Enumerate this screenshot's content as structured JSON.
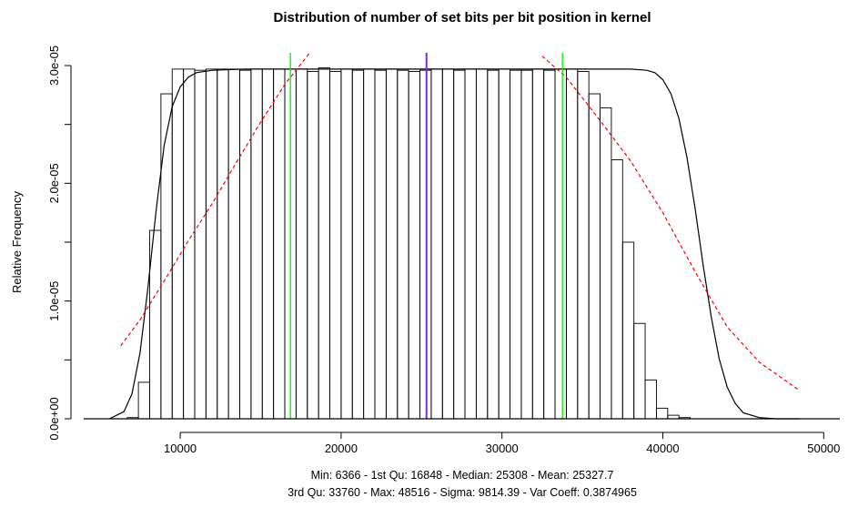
{
  "chart_data": {
    "type": "histogram",
    "title": "Distribution of number of set bits per bit position in kernel",
    "ylabel": "Relative Frequency",
    "xlim": [
      4000,
      51000
    ],
    "ylim": [
      0,
      3e-05
    ],
    "x_ticks": [
      10000,
      20000,
      30000,
      40000,
      50000
    ],
    "x_tick_labels": [
      "10000",
      "20000",
      "30000",
      "40000",
      "50000"
    ],
    "y_ticks": [
      0,
      1e-05,
      2e-05,
      3e-05
    ],
    "y_tick_labels": [
      "0.0e+00",
      "1.0e-05",
      "2.0e-05",
      "3.0e-05"
    ],
    "bins": {
      "start": 6000,
      "width": 700,
      "values": [
        0.0,
        1e-07,
        3.1e-06,
        1.6e-05,
        2.76e-05,
        2.97e-05,
        2.97e-05,
        2.96e-05,
        2.97e-05,
        2.97e-05,
        2.97e-05,
        2.96e-05,
        2.97e-05,
        2.97e-05,
        2.97e-05,
        2.97e-05,
        2.97e-05,
        2.95e-05,
        2.98e-05,
        2.95e-05,
        2.97e-05,
        2.96e-05,
        2.97e-05,
        2.96e-05,
        2.97e-05,
        2.96e-05,
        2.95e-05,
        2.96e-05,
        2.97e-05,
        2.97e-05,
        2.96e-05,
        2.97e-05,
        2.97e-05,
        2.96e-05,
        2.97e-05,
        2.96e-05,
        2.96e-05,
        2.97e-05,
        2.96e-05,
        2.97e-05,
        2.97e-05,
        2.95e-05,
        2.76e-05,
        2.64e-05,
        2.2e-05,
        1.5e-05,
        8.1e-06,
        3.3e-06,
        9e-07,
        3e-07,
        1e-07,
        0.0
      ]
    },
    "density_curve": {
      "x": [
        5600,
        6500,
        7000,
        7500,
        8000,
        8500,
        9000,
        9500,
        10000,
        10500,
        11000,
        12000,
        14000,
        20000,
        30000,
        38000,
        39000,
        39500,
        40000,
        40500,
        41000,
        41500,
        42000,
        42500,
        43000,
        43500,
        44000,
        44500,
        45000,
        46000,
        47000,
        48500
      ],
      "y": [
        0,
        6e-07,
        2.1e-06,
        5.6e-06,
        1.12e-05,
        1.77e-05,
        2.32e-05,
        2.65e-05,
        2.82e-05,
        2.9e-05,
        2.94e-05,
        2.96e-05,
        2.97e-05,
        2.97e-05,
        2.97e-05,
        2.97e-05,
        2.96e-05,
        2.94e-05,
        2.88e-05,
        2.76e-05,
        2.55e-05,
        2.22e-05,
        1.79e-05,
        1.31e-05,
        8.7e-06,
        5.1e-06,
        2.7e-06,
        1.3e-06,
        5e-07,
        1e-07,
        0,
        0
      ]
    },
    "normal_curves": [
      {
        "color": "#ff0000",
        "x": [
          6300,
          7500,
          9000,
          10500,
          12000,
          13500,
          15000,
          16500,
          18000
        ],
        "y": [
          6.2e-06,
          8.4e-06,
          1.17e-05,
          1.51e-05,
          1.83e-05,
          2.18e-05,
          2.52e-05,
          2.84e-05,
          3.1e-05
        ]
      },
      {
        "color": "#ff0000",
        "x": [
          32500,
          34000,
          36000,
          38000,
          40000,
          42000,
          44000,
          46000,
          48500
        ],
        "y": [
          3.08e-05,
          2.9e-05,
          2.55e-05,
          2.19e-05,
          1.75e-05,
          1.25e-05,
          7.8e-06,
          4.8e-06,
          2.4e-06
        ]
      }
    ],
    "vertical_lines": [
      {
        "x": 16848,
        "color": "#00ee00"
      },
      {
        "x": 25308,
        "color": "#7b2fd0"
      },
      {
        "x": 33760,
        "color": "#00ee00"
      }
    ],
    "stats_text": [
      "Min: 6366 - 1st Qu: 16848 - Median: 25308 - Mean: 25327.7",
      "3rd Qu: 33760 - Max: 48516 - Sigma: 9814.39 - Var Coeff: 0.3874965"
    ]
  }
}
